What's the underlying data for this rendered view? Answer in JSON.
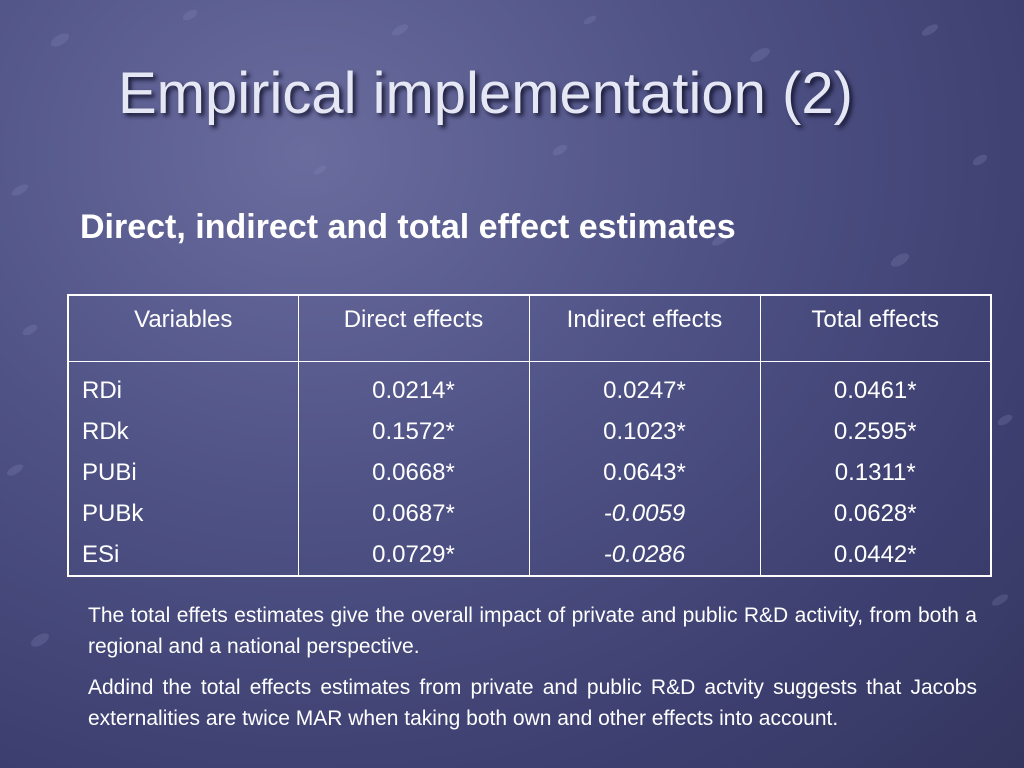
{
  "slide": {
    "title": "Empirical implementation (2)",
    "subtitle": "Direct, indirect and total effect estimates"
  },
  "table": {
    "headers": [
      "Variables",
      "Direct effects",
      "Indirect effects",
      "Total effects"
    ],
    "variables": [
      "RDi",
      "RDk",
      "PUBi",
      "PUBk",
      "ESi"
    ],
    "direct": [
      "0.0214*",
      "0.1572*",
      "0.0668*",
      "0.0687*",
      "0.0729*"
    ],
    "indirect": [
      "0.0247*",
      "0.1023*",
      "0.0643*",
      "-0.0059",
      "-0.0286"
    ],
    "total": [
      "0.0461*",
      "0.2595*",
      "0.1311*",
      "0.0628*",
      "0.0442*"
    ]
  },
  "notes": [
    "The total effets estimates give the overall impact of private and public R&D activity, from both a regional and a national perspective.",
    "Addind the total effects estimates from private and public R&D actvity suggests that Jacobs externalities are twice MAR when taking both own and other effects into account."
  ],
  "colors": {
    "background": "#4f5285",
    "title": "#e6e7f5",
    "text": "#ffffff"
  }
}
